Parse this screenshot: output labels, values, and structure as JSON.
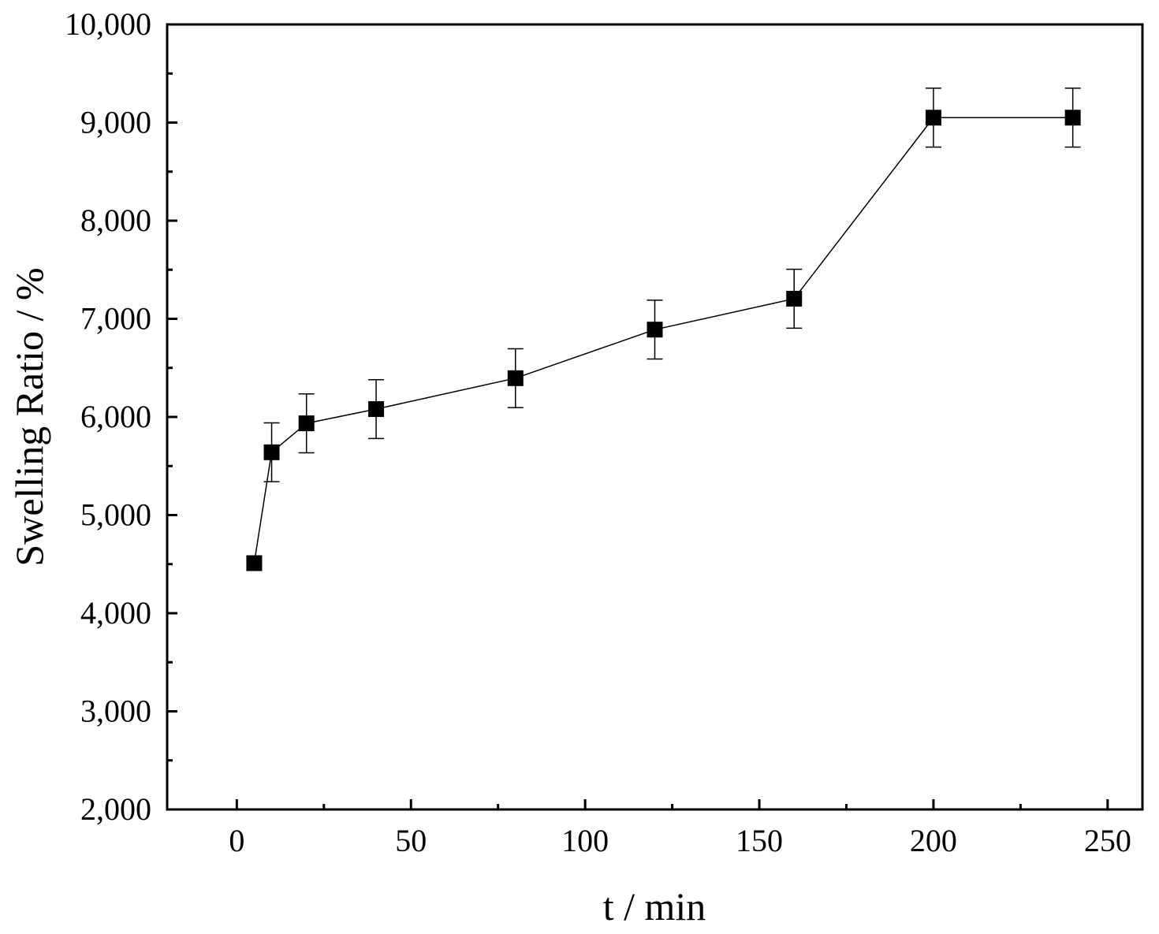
{
  "chart_data": {
    "type": "scatter",
    "xlabel": "t / min",
    "ylabel": "Swelling Ratio / %",
    "xlim": [
      -20,
      260
    ],
    "ylim": [
      2000,
      10000
    ],
    "x_ticks": [
      0,
      50,
      100,
      150,
      200,
      250
    ],
    "x_tick_labels": [
      "0",
      "50",
      "100",
      "150",
      "200",
      "250"
    ],
    "y_ticks": [
      2000,
      3000,
      4000,
      5000,
      6000,
      7000,
      8000,
      9000,
      10000
    ],
    "y_tick_labels": [
      "2,000",
      "3,000",
      "4,000",
      "5,000",
      "6,000",
      "7,000",
      "8,000",
      "9,000",
      "10,000"
    ],
    "grid": false,
    "legend": false,
    "series": [
      {
        "marker": "square",
        "connected": true,
        "color": "#000000",
        "x": [
          5,
          10,
          20,
          40,
          80,
          120,
          160,
          200,
          240
        ],
        "y": [
          4510,
          5640,
          5935,
          6080,
          6395,
          6890,
          7205,
          9050,
          9050
        ],
        "y_err": [
          70,
          300,
          300,
          300,
          300,
          300,
          300,
          300,
          300
        ]
      }
    ]
  }
}
